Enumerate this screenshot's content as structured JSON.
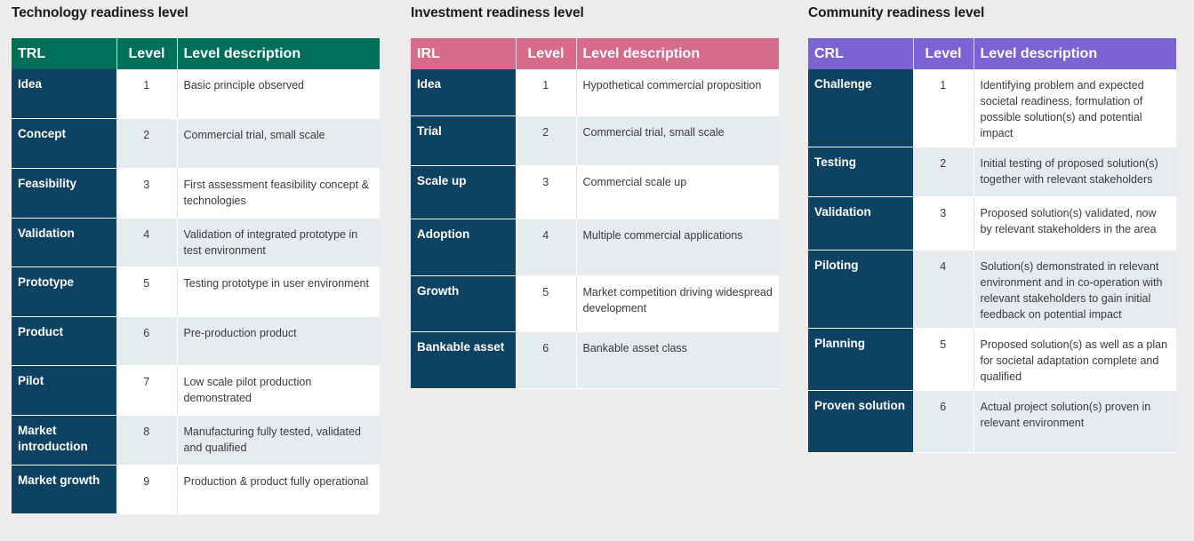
{
  "panels": [
    {
      "title": "Technology readiness level",
      "header_color": "#006f58",
      "columns": [
        "TRL",
        "Level",
        "Level description"
      ],
      "rows": [
        {
          "name": "Idea",
          "level": "1",
          "desc": "Basic principle observed"
        },
        {
          "name": "Concept",
          "level": "2",
          "desc": "Commercial trial, small scale"
        },
        {
          "name": "Feasibility",
          "level": "3",
          "desc": "First assessment feasibility concept & technologies"
        },
        {
          "name": "Validation",
          "level": "4",
          "desc": "Validation of integrated prototype in test environment"
        },
        {
          "name": "Prototype",
          "level": "5",
          "desc": "Testing prototype in user environment"
        },
        {
          "name": "Product",
          "level": "6",
          "desc": "Pre-production product"
        },
        {
          "name": "Pilot",
          "level": "7",
          "desc": "Low scale pilot production demonstrated"
        },
        {
          "name": "Market introduction",
          "level": "8",
          "desc": "Manufacturing fully tested, validated and qualified"
        },
        {
          "name": "Market growth",
          "level": "9",
          "desc": "Production & product fully operational"
        }
      ]
    },
    {
      "title": "Investment readiness level",
      "header_color": "#d76b8b",
      "columns": [
        "IRL",
        "Level",
        "Level description"
      ],
      "rows": [
        {
          "name": "Idea",
          "level": "1",
          "desc": "Hypothetical commercial proposition"
        },
        {
          "name": "Trial",
          "level": "2",
          "desc": "Commercial trial, small scale"
        },
        {
          "name": "Scale up",
          "level": "3",
          "desc": "Commercial scale up"
        },
        {
          "name": "Adoption",
          "level": "4",
          "desc": "Multiple commercial applications"
        },
        {
          "name": "Growth",
          "level": "5",
          "desc": "Market competition driving widespread development"
        },
        {
          "name": "Bankable asset",
          "level": "6",
          "desc": "Bankable asset class"
        }
      ]
    },
    {
      "title": "Community readiness level",
      "header_color": "#7a63d2",
      "columns": [
        "CRL",
        "Level",
        "Level description"
      ],
      "rows": [
        {
          "name": "Challenge",
          "level": "1",
          "desc": "Identifying problem and expected societal readiness, formulation of possible solution(s) and potential impact"
        },
        {
          "name": "Testing",
          "level": "2",
          "desc": "Initial testing of proposed solution(s) together with relevant stakeholders"
        },
        {
          "name": "Validation",
          "level": "3",
          "desc": "Proposed solution(s) validated, now by relevant stakeholders in the area"
        },
        {
          "name": "Piloting",
          "level": "4",
          "desc": "Solution(s) demonstrated in relevant environment and in co-operation with relevant stakeholders to gain initial feedback on potential impact"
        },
        {
          "name": "Planning",
          "level": "5",
          "desc": "Proposed solution(s) as well as a plan for societal adaptation complete and qualified"
        },
        {
          "name": "Proven solution",
          "level": "6",
          "desc": "Actual project solution(s) proven in relevant environment"
        }
      ]
    }
  ]
}
